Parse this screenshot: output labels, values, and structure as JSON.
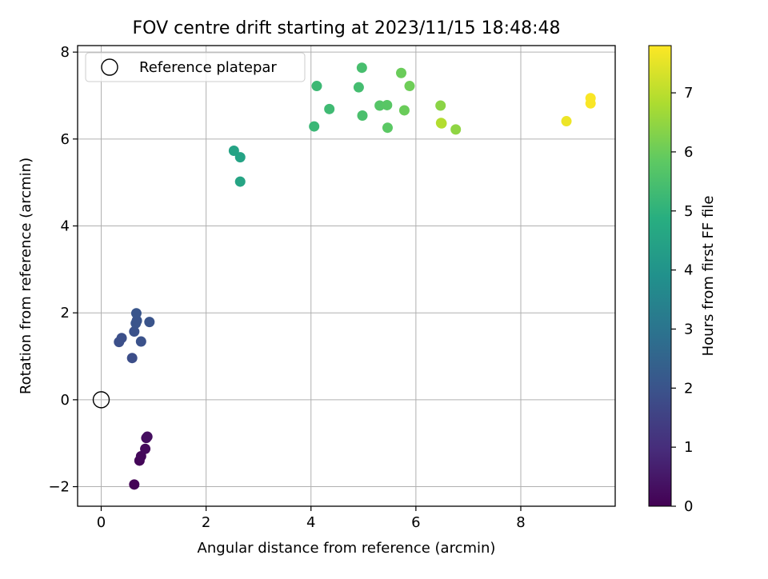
{
  "chart_data": {
    "type": "scatter",
    "title": "FOV centre drift starting at 2023/11/15 18:48:48",
    "xlabel": "Angular distance from reference (arcmin)",
    "ylabel": "Rotation from reference (arcmin)",
    "xlim": [
      -0.45,
      9.8
    ],
    "ylim": [
      -2.45,
      8.15
    ],
    "xticks": [
      "0",
      "2",
      "4",
      "6",
      "8"
    ],
    "yticks": [
      "−2",
      "0",
      "2",
      "4",
      "6",
      "8"
    ],
    "grid": true,
    "legend": {
      "placement": "top-left",
      "entries": [
        {
          "label": "Reference platepar",
          "marker": "open-circle"
        }
      ]
    },
    "reference_point": {
      "x": 0,
      "y": 0
    },
    "colorbar": {
      "label": "Hours from first FF file",
      "colormap": "viridis",
      "range": [
        0,
        7.8
      ],
      "ticks": [
        "0",
        "1",
        "2",
        "3",
        "4",
        "5",
        "6",
        "7"
      ]
    },
    "points": [
      {
        "x": 0.63,
        "y": -1.95,
        "c": 0.05
      },
      {
        "x": 0.73,
        "y": -1.4,
        "c": 0.1
      },
      {
        "x": 0.76,
        "y": -1.3,
        "c": 0.15
      },
      {
        "x": 0.84,
        "y": -1.13,
        "c": 0.2
      },
      {
        "x": 0.86,
        "y": -0.88,
        "c": 0.25
      },
      {
        "x": 0.88,
        "y": -0.85,
        "c": 0.3
      },
      {
        "x": 0.59,
        "y": 0.96,
        "c": 1.85
      },
      {
        "x": 0.34,
        "y": 1.33,
        "c": 1.9
      },
      {
        "x": 0.39,
        "y": 1.42,
        "c": 1.9
      },
      {
        "x": 0.76,
        "y": 1.34,
        "c": 1.95
      },
      {
        "x": 0.63,
        "y": 1.57,
        "c": 1.95
      },
      {
        "x": 0.66,
        "y": 1.76,
        "c": 2.0
      },
      {
        "x": 0.68,
        "y": 1.82,
        "c": 2.0
      },
      {
        "x": 0.92,
        "y": 1.79,
        "c": 2.0
      },
      {
        "x": 0.67,
        "y": 1.99,
        "c": 2.05
      },
      {
        "x": 2.53,
        "y": 5.73,
        "c": 4.5
      },
      {
        "x": 2.65,
        "y": 5.58,
        "c": 4.5
      },
      {
        "x": 2.65,
        "y": 5.02,
        "c": 4.55
      },
      {
        "x": 4.06,
        "y": 6.29,
        "c": 5.2
      },
      {
        "x": 4.11,
        "y": 7.22,
        "c": 5.25
      },
      {
        "x": 4.35,
        "y": 6.69,
        "c": 5.3
      },
      {
        "x": 4.91,
        "y": 7.19,
        "c": 5.4
      },
      {
        "x": 4.97,
        "y": 7.64,
        "c": 5.45
      },
      {
        "x": 4.98,
        "y": 6.54,
        "c": 5.5
      },
      {
        "x": 5.31,
        "y": 6.77,
        "c": 5.7
      },
      {
        "x": 5.45,
        "y": 6.78,
        "c": 5.75
      },
      {
        "x": 5.46,
        "y": 6.26,
        "c": 5.8
      },
      {
        "x": 5.72,
        "y": 7.52,
        "c": 6.0
      },
      {
        "x": 5.78,
        "y": 6.66,
        "c": 6.0
      },
      {
        "x": 5.88,
        "y": 7.22,
        "c": 6.05
      },
      {
        "x": 6.47,
        "y": 6.77,
        "c": 6.4
      },
      {
        "x": 6.49,
        "y": 6.36,
        "c": 6.9
      },
      {
        "x": 6.48,
        "y": 6.37,
        "c": 6.9
      },
      {
        "x": 6.76,
        "y": 6.22,
        "c": 6.45
      },
      {
        "x": 8.87,
        "y": 6.41,
        "c": 7.6
      },
      {
        "x": 9.33,
        "y": 6.94,
        "c": 7.75
      },
      {
        "x": 9.33,
        "y": 6.82,
        "c": 7.75
      }
    ]
  }
}
